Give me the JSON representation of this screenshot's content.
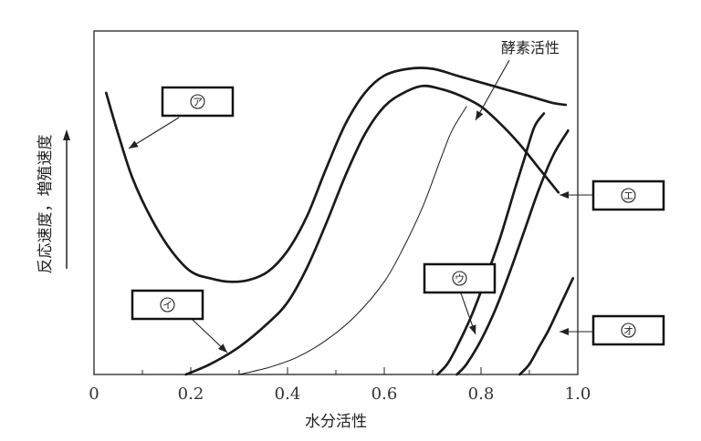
{
  "chart_data": {
    "type": "line",
    "xlabel": "水分活性",
    "ylabel": "反応速度，増殖速度",
    "xlim": [
      0,
      1.0
    ],
    "ylim": [
      0,
      1.0
    ],
    "x_ticks": [
      0,
      0.2,
      0.4,
      0.6,
      0.8,
      1.0
    ],
    "x_tick_labels": [
      "0",
      "0.2",
      "0.4",
      "0.6",
      "0.8",
      "1.0"
    ],
    "grid": false,
    "series": [
      {
        "name": "ア",
        "style": "thick",
        "points": [
          [
            0.025,
            0.82
          ],
          [
            0.05,
            0.7
          ],
          [
            0.08,
            0.57
          ],
          [
            0.12,
            0.45
          ],
          [
            0.16,
            0.36
          ],
          [
            0.2,
            0.3
          ],
          [
            0.24,
            0.28
          ],
          [
            0.28,
            0.27
          ],
          [
            0.32,
            0.275
          ],
          [
            0.36,
            0.3
          ],
          [
            0.4,
            0.36
          ],
          [
            0.44,
            0.46
          ],
          [
            0.48,
            0.6
          ],
          [
            0.52,
            0.73
          ],
          [
            0.56,
            0.82
          ],
          [
            0.6,
            0.87
          ],
          [
            0.65,
            0.89
          ],
          [
            0.7,
            0.89
          ],
          [
            0.75,
            0.87
          ],
          [
            0.8,
            0.85
          ],
          [
            0.85,
            0.83
          ],
          [
            0.9,
            0.81
          ],
          [
            0.95,
            0.79
          ],
          [
            0.975,
            0.785
          ]
        ]
      },
      {
        "name": "イ",
        "style": "thick",
        "points": [
          [
            0.19,
            0.0
          ],
          [
            0.24,
            0.03
          ],
          [
            0.3,
            0.08
          ],
          [
            0.36,
            0.15
          ],
          [
            0.4,
            0.21
          ],
          [
            0.44,
            0.31
          ],
          [
            0.48,
            0.44
          ],
          [
            0.52,
            0.58
          ],
          [
            0.56,
            0.7
          ],
          [
            0.6,
            0.78
          ],
          [
            0.64,
            0.82
          ],
          [
            0.68,
            0.84
          ],
          [
            0.72,
            0.83
          ],
          [
            0.76,
            0.81
          ],
          [
            0.8,
            0.78
          ],
          [
            0.84,
            0.73
          ],
          [
            0.88,
            0.67
          ],
          [
            0.92,
            0.6
          ],
          [
            0.96,
            0.53
          ]
        ]
      },
      {
        "name": "酵素活性",
        "style": "thin",
        "points": [
          [
            0.3,
            0.0
          ],
          [
            0.36,
            0.02
          ],
          [
            0.42,
            0.05
          ],
          [
            0.48,
            0.1
          ],
          [
            0.54,
            0.17
          ],
          [
            0.6,
            0.27
          ],
          [
            0.64,
            0.37
          ],
          [
            0.68,
            0.49
          ],
          [
            0.72,
            0.64
          ],
          [
            0.74,
            0.71
          ],
          [
            0.77,
            0.78
          ]
        ]
      },
      {
        "name": "ウ",
        "style": "thick",
        "points": [
          [
            0.71,
            0.0
          ],
          [
            0.73,
            0.03
          ],
          [
            0.75,
            0.08
          ],
          [
            0.78,
            0.17
          ],
          [
            0.81,
            0.28
          ],
          [
            0.84,
            0.4
          ],
          [
            0.87,
            0.54
          ],
          [
            0.89,
            0.63
          ],
          [
            0.91,
            0.72
          ],
          [
            0.93,
            0.76
          ]
        ]
      },
      {
        "name": "エ",
        "style": "thick",
        "points": [
          [
            0.75,
            0.0
          ],
          [
            0.77,
            0.03
          ],
          [
            0.8,
            0.1
          ],
          [
            0.83,
            0.19
          ],
          [
            0.86,
            0.3
          ],
          [
            0.89,
            0.42
          ],
          [
            0.92,
            0.54
          ],
          [
            0.95,
            0.64
          ],
          [
            0.98,
            0.71
          ]
        ]
      },
      {
        "name": "オ",
        "style": "thick",
        "points": [
          [
            0.88,
            0.0
          ],
          [
            0.9,
            0.03
          ],
          [
            0.92,
            0.08
          ],
          [
            0.94,
            0.13
          ],
          [
            0.96,
            0.19
          ],
          [
            0.98,
            0.25
          ],
          [
            0.99,
            0.28
          ]
        ]
      }
    ],
    "labels": [
      "ア",
      "イ",
      "ウ",
      "エ",
      "オ"
    ],
    "annotation": "酵素活性"
  }
}
